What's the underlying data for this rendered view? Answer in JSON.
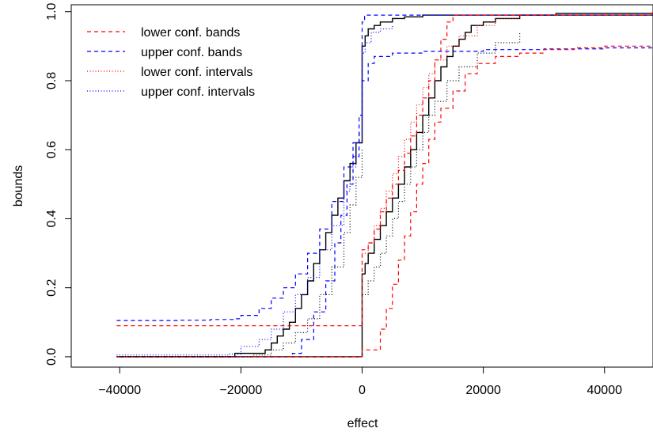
{
  "chart_data": {
    "type": "line",
    "xlabel": "effect",
    "ylabel": "bounds",
    "xlim": [
      -48000,
      48000
    ],
    "ylim": [
      -0.03,
      1.02
    ],
    "xticks": [
      -40000,
      -20000,
      0,
      20000,
      40000
    ],
    "xtick_labels": [
      "−40000",
      "−20000",
      "0",
      "20000",
      "40000"
    ],
    "yticks": [
      0.0,
      0.2,
      0.4,
      0.6,
      0.8,
      1.0
    ],
    "ytick_labels": [
      "0.0",
      "0.2",
      "0.4",
      "0.6",
      "0.8",
      "1.0"
    ],
    "legend": {
      "position": "top-left",
      "entries": [
        {
          "label": "lower conf. bands",
          "color": "#ff0000",
          "style": "dashed"
        },
        {
          "label": "upper conf. bands",
          "color": "#0000ff",
          "style": "dashed"
        },
        {
          "label": "lower conf. intervals",
          "color": "#ff0000",
          "style": "dotted"
        },
        {
          "label": "upper conf. intervals",
          "color": "#0000ff",
          "style": "dotted"
        }
      ]
    },
    "series": [
      {
        "color": "#000000",
        "style": "solid",
        "points": [
          [
            -40500,
            0
          ],
          [
            -21000,
            0
          ],
          [
            -21000,
            0.01
          ],
          [
            -16000,
            0.02
          ],
          [
            -15000,
            0.04
          ],
          [
            -14000,
            0.06
          ],
          [
            -13000,
            0.08
          ],
          [
            -12000,
            0.1
          ],
          [
            -11000,
            0.14
          ],
          [
            -10000,
            0.18
          ],
          [
            -9000,
            0.22
          ],
          [
            -8000,
            0.27
          ],
          [
            -7000,
            0.31
          ],
          [
            -6000,
            0.36
          ],
          [
            -5000,
            0.41
          ],
          [
            -4000,
            0.46
          ],
          [
            -3000,
            0.51
          ],
          [
            -2000,
            0.56
          ],
          [
            -1000,
            0.62
          ],
          [
            0,
            0.67
          ],
          [
            0,
            0.9
          ],
          [
            500,
            0.93
          ],
          [
            1000,
            0.95
          ],
          [
            2000,
            0.96
          ],
          [
            3000,
            0.97
          ],
          [
            5000,
            0.98
          ],
          [
            7000,
            0.985
          ],
          [
            10000,
            0.99
          ],
          [
            48000,
            1.0
          ]
        ]
      },
      {
        "color": "#000000",
        "style": "solid",
        "points": [
          [
            -40500,
            0
          ],
          [
            0,
            0
          ],
          [
            0,
            0.24
          ],
          [
            500,
            0.27
          ],
          [
            1000,
            0.3
          ],
          [
            2000,
            0.34
          ],
          [
            3000,
            0.38
          ],
          [
            4000,
            0.42
          ],
          [
            5000,
            0.46
          ],
          [
            6000,
            0.5
          ],
          [
            7000,
            0.55
          ],
          [
            8000,
            0.6
          ],
          [
            9000,
            0.65
          ],
          [
            10000,
            0.7
          ],
          [
            11000,
            0.75
          ],
          [
            12000,
            0.8
          ],
          [
            13000,
            0.84
          ],
          [
            14000,
            0.87
          ],
          [
            15000,
            0.9
          ],
          [
            16000,
            0.92
          ],
          [
            17000,
            0.94
          ],
          [
            18000,
            0.96
          ],
          [
            20000,
            0.97
          ],
          [
            22000,
            0.98
          ],
          [
            26000,
            0.99
          ],
          [
            32000,
            0.995
          ],
          [
            48000,
            0.995
          ]
        ]
      },
      {
        "color": "#0000ff",
        "style": "dashed",
        "points": [
          [
            -40500,
            0.105
          ],
          [
            -33000,
            0.105
          ],
          [
            -30000,
            0.106
          ],
          [
            -25000,
            0.108
          ],
          [
            -21000,
            0.11
          ],
          [
            -20000,
            0.12
          ],
          [
            -17000,
            0.14
          ],
          [
            -15000,
            0.17
          ],
          [
            -13000,
            0.2
          ],
          [
            -11000,
            0.24
          ],
          [
            -9000,
            0.3
          ],
          [
            -7000,
            0.37
          ],
          [
            -5000,
            0.45
          ],
          [
            -3000,
            0.55
          ],
          [
            -1500,
            0.62
          ],
          [
            -500,
            0.7
          ],
          [
            0,
            0.75
          ],
          [
            0,
            0.97
          ],
          [
            400,
            0.99
          ],
          [
            48000,
            0.995
          ]
        ]
      },
      {
        "color": "#ff0000",
        "style": "dashed",
        "points": [
          [
            -40500,
            0.09
          ],
          [
            0,
            0.09
          ],
          [
            0,
            0.31
          ],
          [
            1000,
            0.33
          ],
          [
            2000,
            0.37
          ],
          [
            3000,
            0.42
          ],
          [
            4000,
            0.46
          ],
          [
            5000,
            0.5
          ],
          [
            6000,
            0.54
          ],
          [
            7000,
            0.59
          ],
          [
            8000,
            0.64
          ],
          [
            9000,
            0.7
          ],
          [
            10000,
            0.75
          ],
          [
            11000,
            0.8
          ],
          [
            12000,
            0.86
          ],
          [
            13000,
            0.92
          ],
          [
            14000,
            0.97
          ],
          [
            15000,
            0.99
          ],
          [
            48000,
            1.0
          ]
        ]
      },
      {
        "color": "#0000ff",
        "style": "dashed",
        "points": [
          [
            -40500,
            0
          ],
          [
            -11500,
            0
          ],
          [
            -11500,
            0.01
          ],
          [
            -10000,
            0.05
          ],
          [
            -8000,
            0.13
          ],
          [
            -6000,
            0.22
          ],
          [
            -4500,
            0.33
          ],
          [
            -3500,
            0.41
          ],
          [
            -2500,
            0.5
          ],
          [
            -1500,
            0.58
          ],
          [
            -500,
            0.65
          ],
          [
            0,
            0.7
          ],
          [
            0,
            0.8
          ],
          [
            1000,
            0.85
          ],
          [
            2000,
            0.87
          ],
          [
            5000,
            0.88
          ],
          [
            10000,
            0.885
          ],
          [
            20000,
            0.89
          ],
          [
            30000,
            0.892
          ],
          [
            40000,
            0.895
          ],
          [
            48000,
            0.895
          ]
        ]
      },
      {
        "color": "#ff0000",
        "style": "dashed",
        "points": [
          [
            -40500,
            0
          ],
          [
            0,
            0
          ],
          [
            0,
            0.02
          ],
          [
            3000,
            0.08
          ],
          [
            4000,
            0.14
          ],
          [
            5000,
            0.21
          ],
          [
            6000,
            0.28
          ],
          [
            7000,
            0.35
          ],
          [
            8000,
            0.42
          ],
          [
            9000,
            0.5
          ],
          [
            10000,
            0.56
          ],
          [
            11000,
            0.63
          ],
          [
            12000,
            0.68
          ],
          [
            13000,
            0.72
          ],
          [
            15000,
            0.77
          ],
          [
            17000,
            0.82
          ],
          [
            19000,
            0.85
          ],
          [
            22000,
            0.87
          ],
          [
            26000,
            0.88
          ],
          [
            30000,
            0.89
          ],
          [
            35000,
            0.895
          ],
          [
            40000,
            0.9
          ],
          [
            48000,
            0.902
          ]
        ]
      },
      {
        "color": "#0000ff",
        "style": "dotted",
        "points": [
          [
            -40500,
            0.005
          ],
          [
            -22000,
            0.008
          ],
          [
            -20000,
            0.03
          ],
          [
            -17000,
            0.05
          ],
          [
            -15000,
            0.08
          ],
          [
            -13000,
            0.13
          ],
          [
            -11000,
            0.18
          ],
          [
            -9000,
            0.23
          ],
          [
            -7000,
            0.31
          ],
          [
            -5000,
            0.38
          ],
          [
            -3000,
            0.48
          ],
          [
            -2000,
            0.55
          ],
          [
            -1000,
            0.62
          ],
          [
            0,
            0.7
          ],
          [
            0,
            0.88
          ],
          [
            500,
            0.91
          ],
          [
            1500,
            0.94
          ],
          [
            3000,
            0.95
          ],
          [
            5000,
            0.96
          ]
        ]
      },
      {
        "color": "#000000",
        "style": "dotted",
        "points": [
          [
            -40500,
            0
          ],
          [
            -18000,
            0.005
          ],
          [
            -15000,
            0.02
          ],
          [
            -13000,
            0.04
          ],
          [
            -11000,
            0.07
          ],
          [
            -9000,
            0.11
          ],
          [
            -7000,
            0.18
          ],
          [
            -5000,
            0.26
          ],
          [
            -3000,
            0.36
          ],
          [
            -2000,
            0.44
          ],
          [
            -1000,
            0.52
          ],
          [
            0,
            0.6
          ]
        ]
      },
      {
        "color": "#ff0000",
        "style": "dotted",
        "points": [
          [
            0,
            0.3
          ],
          [
            1000,
            0.33
          ],
          [
            2000,
            0.38
          ],
          [
            3000,
            0.43
          ],
          [
            4000,
            0.48
          ],
          [
            5000,
            0.53
          ],
          [
            6000,
            0.58
          ],
          [
            7000,
            0.63
          ],
          [
            8000,
            0.68
          ],
          [
            9000,
            0.73
          ],
          [
            10000,
            0.78
          ],
          [
            11000,
            0.82
          ],
          [
            12000,
            0.86
          ],
          [
            14000,
            0.9
          ],
          [
            16000,
            0.93
          ],
          [
            19000,
            0.96
          ],
          [
            22000,
            0.98
          ],
          [
            26000,
            0.99
          ]
        ]
      },
      {
        "color": "#000000",
        "style": "dotted",
        "points": [
          [
            0,
            0.18
          ],
          [
            1000,
            0.22
          ],
          [
            2000,
            0.26
          ],
          [
            3000,
            0.3
          ],
          [
            4000,
            0.35
          ],
          [
            5000,
            0.4
          ],
          [
            6000,
            0.45
          ],
          [
            7000,
            0.5
          ],
          [
            8000,
            0.55
          ],
          [
            9000,
            0.6
          ],
          [
            10000,
            0.65
          ],
          [
            11000,
            0.7
          ],
          [
            12000,
            0.74
          ],
          [
            14000,
            0.8
          ],
          [
            16000,
            0.84
          ],
          [
            19000,
            0.88
          ],
          [
            22000,
            0.91
          ],
          [
            26000,
            0.94
          ]
        ]
      }
    ]
  }
}
